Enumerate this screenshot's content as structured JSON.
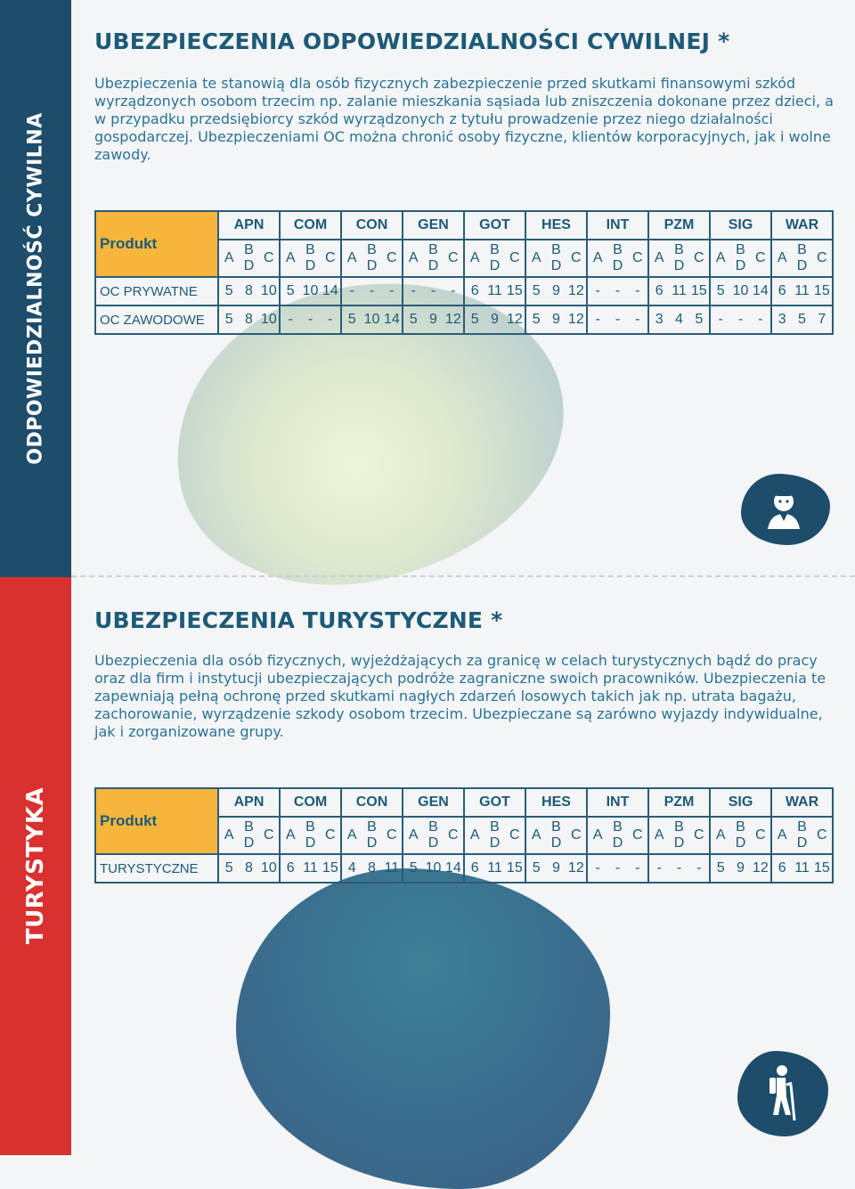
{
  "sidebar": {
    "top_label": "ODPOWIEDZIALNOŚĆ CYWILNA",
    "bottom_label": "TURYSTYKA"
  },
  "colors": {
    "navy": "#1e4d6b",
    "red": "#d8312f",
    "orange": "#f6b63c",
    "text": "#1d5a78"
  },
  "section1": {
    "title": "UBEZPIECZENIA ODPOWIEDZIALNOŚCI CYWILNEJ *",
    "body": "Ubezpieczenia te stanowią dla osób fizycznych zabezpieczenie przed skutkami finansowymi szkód wyrządzonych osobom trzecim np. zalanie mieszkania sąsiada lub zniszczenia dokonane przez dzieci, a w przypadku przedsiębiorcy szkód wyrządzonych z tytułu prowadzenie przez niego działalności gospodarczej. Ubezpieczeniami OC można chronić osoby fizyczne, klientów korporacyjnych, jak i wolne zawody.",
    "table": {
      "product_label": "Produkt",
      "rows": [
        {
          "label": "OC PRYWATNE",
          "values": [
            [
              "5",
              "8",
              "10"
            ],
            [
              "5",
              "10",
              "14"
            ],
            [
              "-",
              "-",
              "-"
            ],
            [
              "-",
              "-",
              "-"
            ],
            [
              "6",
              "11",
              "15"
            ],
            [
              "5",
              "9",
              "12"
            ],
            [
              "-",
              "-",
              "-"
            ],
            [
              "6",
              "11",
              "15"
            ],
            [
              "5",
              "10",
              "14"
            ],
            [
              "6",
              "11",
              "15"
            ]
          ]
        },
        {
          "label": "OC ZAWODOWE",
          "values": [
            [
              "5",
              "8",
              "10"
            ],
            [
              "-",
              "-",
              "-"
            ],
            [
              "5",
              "10",
              "14"
            ],
            [
              "5",
              "9",
              "12"
            ],
            [
              "5",
              "9",
              "12"
            ],
            [
              "5",
              "9",
              "12"
            ],
            [
              "-",
              "-",
              "-"
            ],
            [
              "3",
              "4",
              "5"
            ],
            [
              "-",
              "-",
              "-"
            ],
            [
              "3",
              "5",
              "7"
            ]
          ]
        }
      ]
    },
    "icon": "person-icon"
  },
  "companies": [
    "APN",
    "COM",
    "CON",
    "GEN",
    "GOT",
    "HES",
    "INT",
    "PZM",
    "SIG",
    "WAR"
  ],
  "sub_labels": {
    "a": "A",
    "b": "B",
    "d": "D",
    "c": "C"
  },
  "section2": {
    "title": "UBEZPIECZENIA TURYSTYCZNE *",
    "body": "Ubezpieczenia dla osób fizycznych, wyjeżdżających za granicę w celach turystycznych bądź do pracy oraz dla firm i instytucji ubezpieczających podróże zagraniczne swoich pracowników. Ubezpieczenia te zapewniają pełną ochronę przed skutkami nagłych zdarzeń losowych takich jak np. utrata bagażu, zachorowanie, wyrządzenie szkody osobom trzecim. Ubezpieczane są zarówno wyjazdy indywidualne, jak i zorganizowane grupy.",
    "table": {
      "product_label": "Produkt",
      "rows": [
        {
          "label": "TURYSTYCZNE",
          "values": [
            [
              "5",
              "8",
              "10"
            ],
            [
              "6",
              "11",
              "15"
            ],
            [
              "4",
              "8",
              "11"
            ],
            [
              "5",
              "10",
              "14"
            ],
            [
              "6",
              "11",
              "15"
            ],
            [
              "5",
              "9",
              "12"
            ],
            [
              "-",
              "-",
              "-"
            ],
            [
              "-",
              "-",
              "-"
            ],
            [
              "5",
              "9",
              "12"
            ],
            [
              "6",
              "11",
              "15"
            ]
          ]
        }
      ]
    },
    "icon": "hiker-icon"
  }
}
